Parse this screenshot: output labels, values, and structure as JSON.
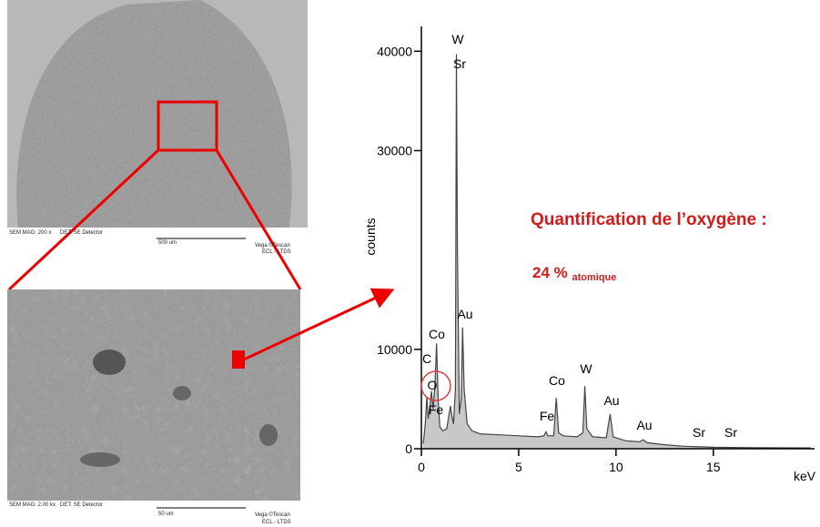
{
  "chart_data": {
    "type": "area",
    "xlabel": "keV",
    "ylabel": "counts",
    "x": [
      0.1,
      0.2,
      0.28,
      0.35,
      0.45,
      0.52,
      0.6,
      0.7,
      0.78,
      0.86,
      0.95,
      1.1,
      1.3,
      1.45,
      1.5,
      1.55,
      1.65,
      1.75,
      1.8,
      1.85,
      1.95,
      2.05,
      2.12,
      2.2,
      2.35,
      2.6,
      3,
      4,
      5,
      6,
      6.3,
      6.4,
      6.5,
      6.8,
      6.93,
      7.05,
      7.3,
      8,
      8.3,
      8.4,
      8.5,
      8.8,
      9.5,
      9.7,
      9.85,
      10.5,
      11.2,
      11.4,
      11.6,
      12.5,
      13.5,
      15,
      17,
      20
    ],
    "values": [
      500,
      2500,
      5200,
      3000,
      4500,
      5800,
      4000,
      6500,
      10600,
      5000,
      2200,
      1800,
      2000,
      3800,
      4300,
      3500,
      2500,
      6000,
      39700,
      20000,
      3500,
      5000,
      12200,
      6000,
      2500,
      1800,
      1500,
      1400,
      1300,
      1200,
      1300,
      1700,
      1300,
      1300,
      5100,
      1600,
      1300,
      1200,
      1600,
      6300,
      2000,
      1200,
      1100,
      3500,
      1200,
      800,
      700,
      900,
      600,
      400,
      250,
      150,
      100,
      80
    ],
    "color": "#c8c8c8",
    "xlim": [
      0,
      20.2
    ],
    "ylim": [
      0,
      42500
    ],
    "xticks": [
      0,
      5,
      10,
      15
    ],
    "yticks": [
      0,
      10000,
      30000,
      40000
    ],
    "peak_labels": [
      "W",
      "Sr",
      "Co",
      "Au",
      "C",
      "O",
      "Fe",
      "Fe",
      "Co",
      "W",
      "Au",
      "Au",
      "Sr",
      "Sr"
    ],
    "annotation_title": "Quantification de l’oxygène :",
    "annotation_value": "24 %",
    "annotation_unit": "atomique"
  },
  "sem_images": [
    {
      "mag": "SEM MAG: 200 x",
      "det": "DET:  SE Detector",
      "scale": "500 um",
      "brand": "Vega ©Tescan",
      "lab": "ECL - LTDS"
    },
    {
      "mag": "SEM MAG: 2.00 kx",
      "det": "DET:  SE Detector",
      "scale": "50 um",
      "brand": "Vega ©Tescan",
      "lab": "ECL - LTDS"
    }
  ]
}
